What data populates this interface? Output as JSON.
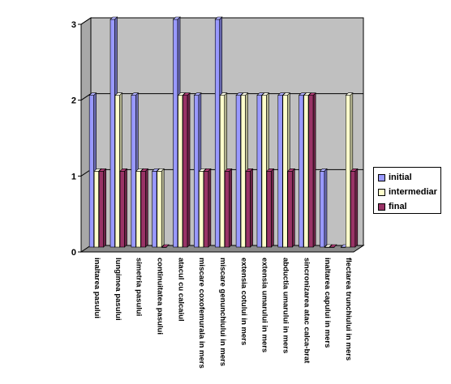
{
  "chart_data": {
    "type": "bar",
    "style": "3d-clustered",
    "categories": [
      "inaltarea pasului",
      "lungimea pasului",
      "simetria pasului",
      "continuitatea pasului",
      "atacul cu calcaiul",
      "miscare coxofemurala in mers",
      "miscare genunchiului in mers",
      "extensia cotului in mers",
      "extensia umarului in mers",
      "abductia umarului in mers",
      "sincronizarea atac calca-brat",
      "inaltarea capului in mers",
      "flectarea trunchiului in mers"
    ],
    "series": [
      {
        "name": "initial",
        "color": "#9999ff",
        "values": [
          2,
          3,
          2,
          1,
          3,
          2,
          3,
          2,
          2,
          2,
          2,
          1,
          0
        ]
      },
      {
        "name": "intermediar",
        "color": "#ffffcc",
        "values": [
          1,
          2,
          1,
          1,
          2,
          1,
          2,
          2,
          2,
          2,
          2,
          0,
          2
        ]
      },
      {
        "name": "final",
        "color": "#993366",
        "values": [
          1,
          1,
          1,
          0,
          2,
          1,
          1,
          1,
          1,
          1,
          2,
          0,
          1
        ]
      }
    ],
    "y_ticks": [
      "0",
      "1",
      "2",
      "3"
    ],
    "ylim": [
      0,
      3
    ],
    "grid": true,
    "wall_color": "#c0c0c0",
    "legend_position": "right"
  },
  "legend": {
    "items": [
      {
        "label": "initial",
        "color": "#9999ff"
      },
      {
        "label": "intermediar",
        "color": "#ffffcc"
      },
      {
        "label": "final",
        "color": "#993366"
      }
    ]
  }
}
